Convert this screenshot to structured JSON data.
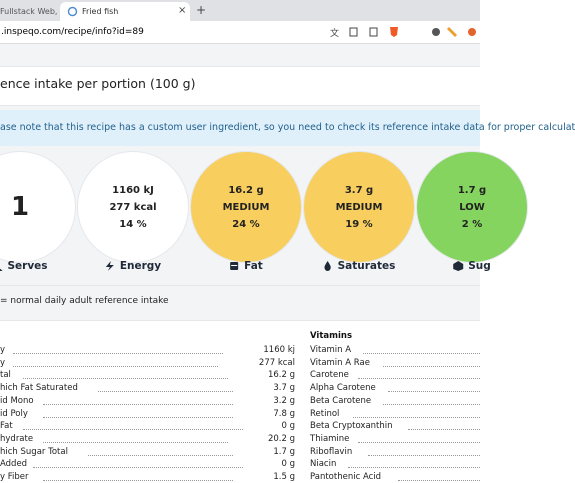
{
  "browser": {
    "tabs": [
      "Fullstack Web, Mo",
      "Fried fish"
    ],
    "address": ".inspeqo.com/recipe/info?id=89"
  },
  "section_title": "ence intake per portion (100 g)",
  "notice": "ase note that this recipe has a custom user ingredient, so you need to check its reference intake data for proper calculat",
  "circles": [
    {
      "lines": [
        "1"
      ],
      "label": "Serves",
      "color": "#ffffff"
    },
    {
      "lines": [
        "1160 kJ",
        "277 kcal",
        "14 %"
      ],
      "label": "Energy",
      "color": "#ffffff"
    },
    {
      "lines": [
        "16.2 g",
        "MEDIUM",
        "24 %"
      ],
      "label": "Fat",
      "color": "#f8cf5e"
    },
    {
      "lines": [
        "3.7 g",
        "MEDIUM",
        "19 %"
      ],
      "label": "Saturates",
      "color": "#f8cf5e"
    },
    {
      "lines": [
        "1.7 g",
        "LOW",
        "2 %"
      ],
      "label": "Sug",
      "color": "#85d45f"
    }
  ],
  "legend_note": "= normal daily adult reference intake",
  "nutrients": [
    {
      "name": "y",
      "value": "1160 kj"
    },
    {
      "name": "y",
      "value": "277 kcal"
    },
    {
      "name": "tal",
      "value": "16.2 g"
    },
    {
      "name": "hich Fat Saturated",
      "value": "3.7 g"
    },
    {
      "name": "id Mono",
      "value": "3.2 g"
    },
    {
      "name": "id Poly",
      "value": "7.8 g"
    },
    {
      "name": "Fat",
      "value": "0 g"
    },
    {
      "name": "hydrate",
      "value": "20.2 g"
    },
    {
      "name": "hich Sugar Total",
      "value": "1.7 g"
    },
    {
      "name": "Added",
      "value": "0 g"
    },
    {
      "name": "y Fiber",
      "value": "1.5 g"
    }
  ],
  "vitamins": {
    "title": "Vitamins",
    "items": [
      "Vitamin A",
      "Vitamin A Rae",
      "Carotene",
      "Alpha Carotene",
      "Beta Carotene",
      "Retinol",
      "Beta Cryptoxanthin",
      "Thiamine",
      "Riboflavin",
      "Niacin",
      "Pantothenic Acid"
    ]
  }
}
